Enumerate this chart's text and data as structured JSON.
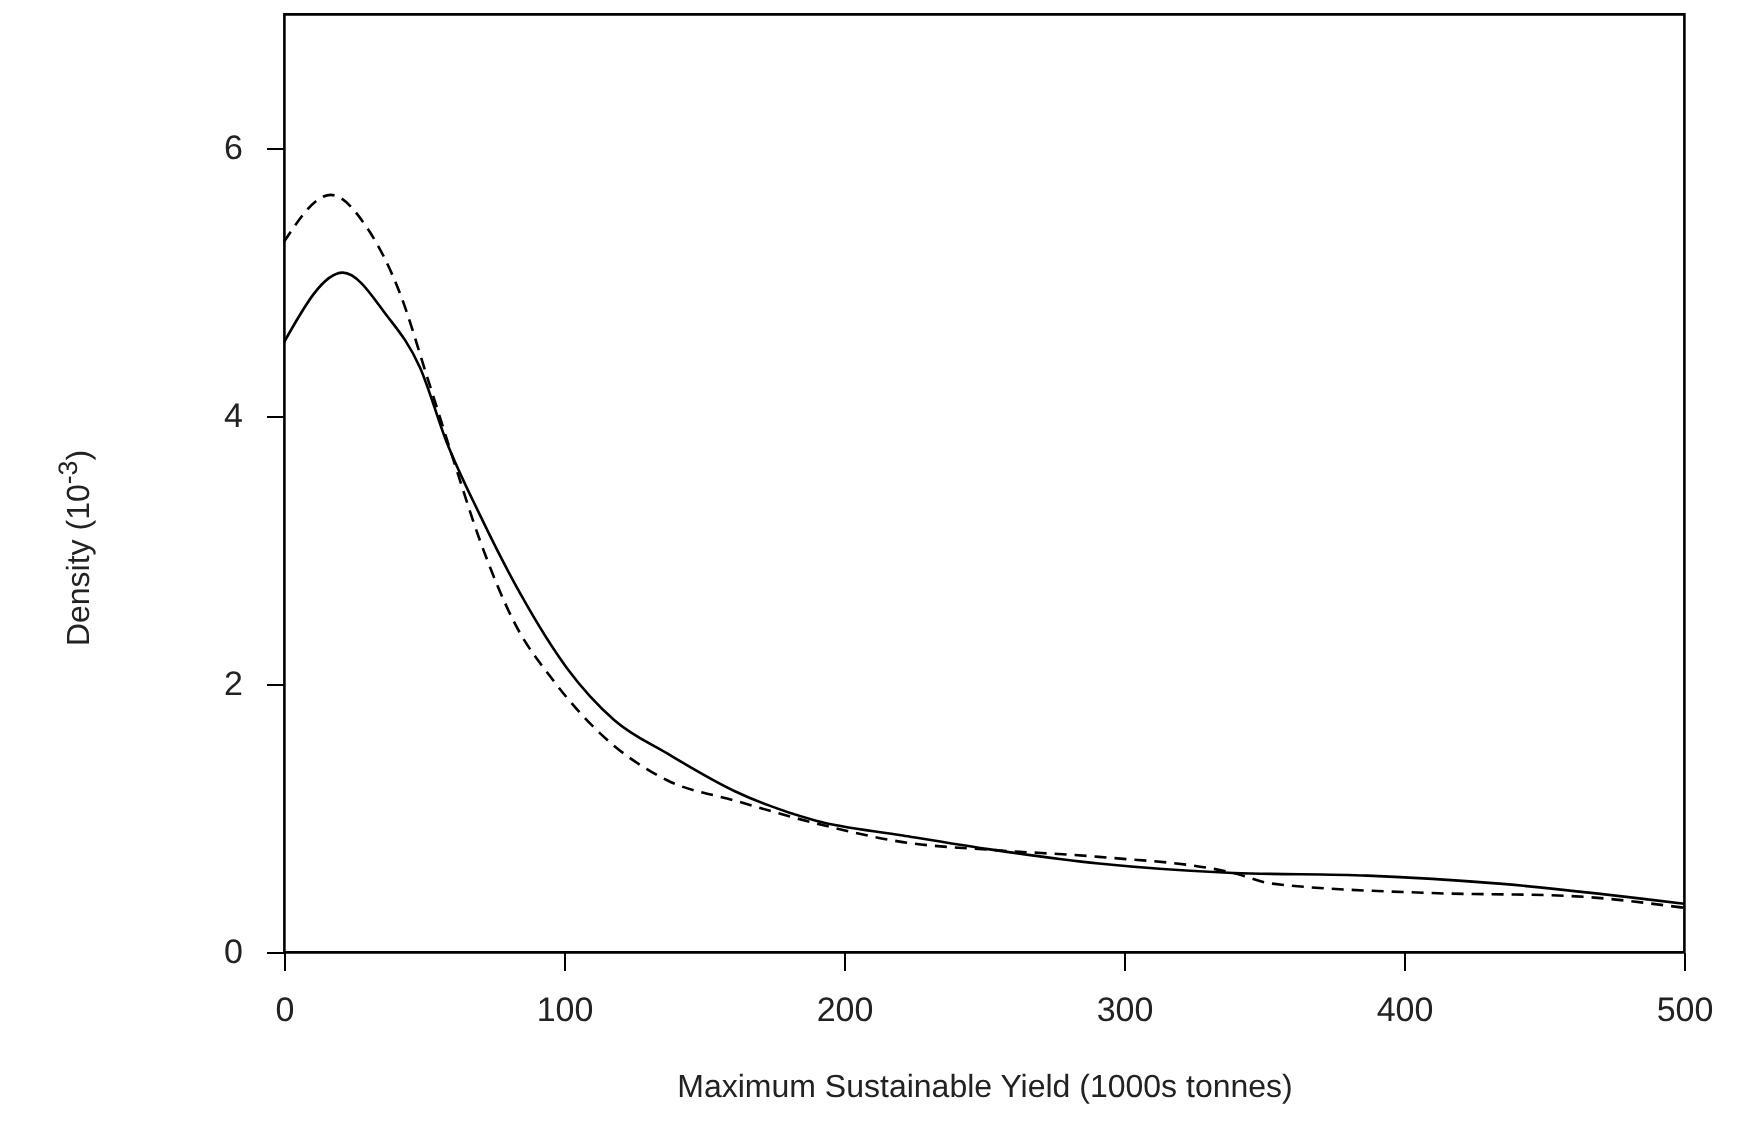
{
  "chart_data": {
    "type": "line",
    "xlabel": "Maximum Sustainable Yield (1000s tonnes)",
    "ylabel": "Density (10$^{-3}$)",
    "xlim": [
      0,
      500
    ],
    "xticks": [
      0,
      100,
      200,
      300,
      400,
      500
    ],
    "ylim": [
      0,
      7
    ],
    "yticks": [
      0,
      2,
      4,
      6
    ],
    "grid": false,
    "marker": "none",
    "series": [
      {
        "color": "#000000",
        "line_style": "solid",
        "x": [
          0,
          21,
          36.7,
          48.6,
          58,
          70,
          84.5,
          101,
          118,
          137,
          161,
          190,
          221,
          254,
          291,
          339,
          387,
          434,
          500
        ],
        "values": [
          4.55,
          5.07,
          4.75,
          4.36,
          3.81,
          3.26,
          2.67,
          2.12,
          1.73,
          1.48,
          1.2,
          0.98,
          0.87,
          0.76,
          0.66,
          0.59,
          0.57,
          0.51,
          0.36
        ]
      },
      {
        "color": "#000000",
        "line_style": "dashed",
        "x": [
          0,
          16.7,
          29.8,
          41.7,
          51,
          60.7,
          70,
          82,
          96.4,
          113,
          137,
          161,
          190,
          221,
          254,
          291,
          339,
          353,
          410,
          457,
          500
        ],
        "values": [
          5.3,
          5.65,
          5.4,
          4.9,
          4.3,
          3.66,
          3.07,
          2.47,
          2.02,
          1.63,
          1.28,
          1.13,
          0.96,
          0.82,
          0.76,
          0.71,
          0.59,
          0.51,
          0.44,
          0.42,
          0.33
        ]
      }
    ]
  }
}
